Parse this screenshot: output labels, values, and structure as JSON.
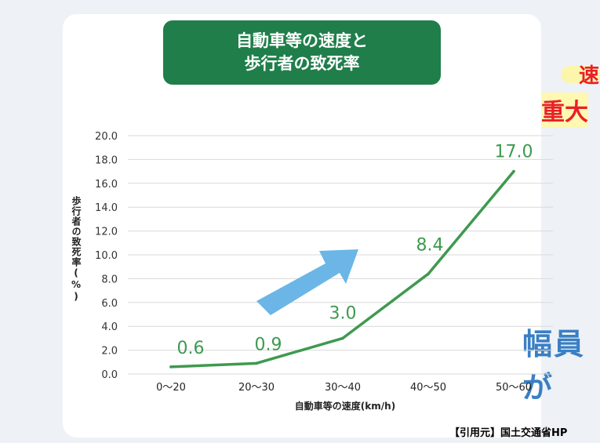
{
  "header": {
    "title_line1": "自動車等の速度と",
    "title_line2": "歩行者の致死率"
  },
  "side": {
    "text1": "速",
    "text2": "重大",
    "text3": "幅員が"
  },
  "citation": "【引用元】国土交通省HP",
  "colors": {
    "title_bg": "#1f7e4a",
    "line": "#3e9a4f",
    "arrow": "#6bb6e6",
    "accent_red": "#e8202a",
    "accent_blue": "#3a7fc4"
  },
  "chart_data": {
    "type": "line",
    "categories": [
      "0〜20",
      "20〜30",
      "30〜40",
      "40〜50",
      "50〜60"
    ],
    "values": [
      0.6,
      0.9,
      3.0,
      8.4,
      17.0
    ],
    "data_labels": [
      "0.6",
      "0.9",
      "3.0",
      "8.4",
      "17.0"
    ],
    "yticks": [
      "0.0",
      "2.0",
      "4.0",
      "6.0",
      "8.0",
      "10.0",
      "12.0",
      "14.0",
      "16.0",
      "18.0",
      "20.0"
    ],
    "ylim": [
      0,
      20
    ],
    "xlabel": "自動車等の速度(km/h)",
    "ylabel": "歩行者の致死率(%)",
    "grid": true
  }
}
